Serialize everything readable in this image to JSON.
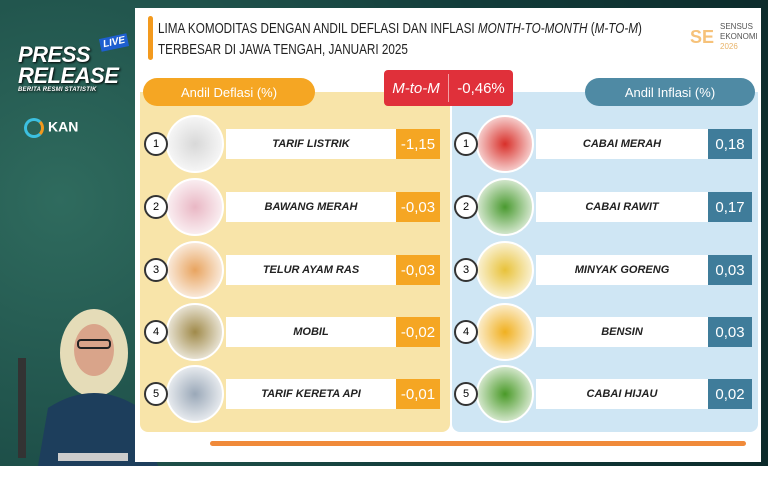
{
  "branding": {
    "press": "PRESS",
    "release": "RELEASE",
    "live": "LIVE",
    "tagline": "BERITA RESMI STATISTIK",
    "partner": "KAN"
  },
  "title": {
    "line1_prefix": "LIMA KOMODITAS DENGAN ANDIL DEFLASI DAN INFLASI ",
    "line1_italic": "MONTH-TO-MONTH",
    "line1_paren_open": " (",
    "line1_italic2": "M-TO-M",
    "line1_paren_close": ")",
    "line2": "TERBESAR DI JAWA TENGAH, JANUARI 2025"
  },
  "sensus": {
    "l1": "SENSUS",
    "l2": "EKONOMI",
    "l3": "2026"
  },
  "headers": {
    "deflation": "Andil Deflasi (%)",
    "inflation": "Andil Inflasi (%)",
    "mtm_label": "M-to-M",
    "mtm_value": "-0,46%"
  },
  "deflation": [
    {
      "rank": "1",
      "name": "TARIF LISTRIK",
      "value": "-1,15",
      "icon": "electric-meter"
    },
    {
      "rank": "2",
      "name": "BAWANG MERAH",
      "value": "-0,03",
      "icon": "shallot"
    },
    {
      "rank": "3",
      "name": "TELUR AYAM RAS",
      "value": "-0,03",
      "icon": "egg"
    },
    {
      "rank": "4",
      "name": "MOBIL",
      "value": "-0,02",
      "icon": "car"
    },
    {
      "rank": "5",
      "name": "TARIF KERETA API",
      "value": "-0,01",
      "icon": "train"
    }
  ],
  "inflation": [
    {
      "rank": "1",
      "name": "CABAI MERAH",
      "value": "0,18",
      "icon": "red-chili"
    },
    {
      "rank": "2",
      "name": "CABAI RAWIT",
      "value": "0,17",
      "icon": "bird-eye-chili"
    },
    {
      "rank": "3",
      "name": "MINYAK GORENG",
      "value": "0,03",
      "icon": "cooking-oil"
    },
    {
      "rank": "4",
      "name": "BENSIN",
      "value": "0,03",
      "icon": "fuel-nozzle"
    },
    {
      "rank": "5",
      "name": "CABAI HIJAU",
      "value": "0,02",
      "icon": "green-chili"
    }
  ],
  "colors": {
    "deflation": "#f5a623",
    "inflation": "#3f7c9a",
    "mtm": "#e0303a"
  }
}
